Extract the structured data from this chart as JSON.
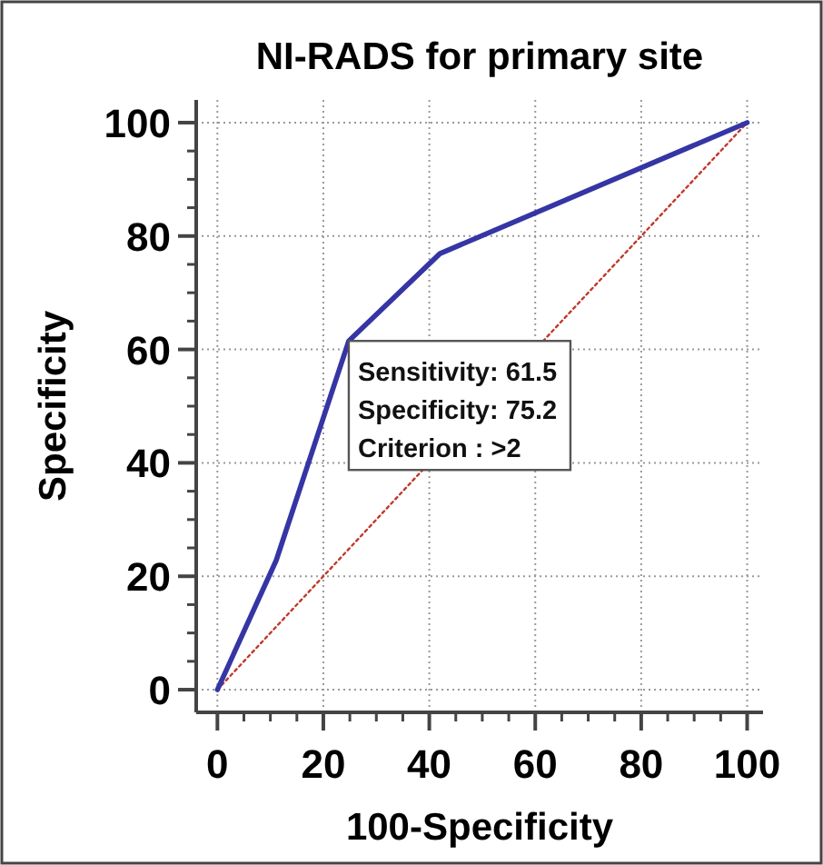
{
  "chart_data": {
    "type": "line",
    "title": "NI-RADS for primary site",
    "xlabel": "100-Specificity",
    "ylabel": "Specificity",
    "x": [
      0,
      11.1,
      24.8,
      42,
      100
    ],
    "series": [
      {
        "color": "#3535a5",
        "values": [
          0,
          22.8,
          61.5,
          76.9,
          100
        ]
      },
      {
        "type": "line",
        "x": [
          0,
          100
        ],
        "color": "#c0392b",
        "values": [
          0,
          100
        ],
        "line_style": "dotted"
      }
    ],
    "xlim": [
      -4,
      103
    ],
    "ylim": [
      -4,
      104
    ],
    "xticks": [
      0,
      20,
      40,
      60,
      80,
      100
    ],
    "yticks": [
      0,
      20,
      40,
      60,
      80,
      100
    ],
    "grid": true,
    "marker": "none",
    "line_style": "solid",
    "annotations": [
      {
        "text": "Sensitivity: 61.5\nSpecificity: 75.2\nCriterion : >2",
        "x": 24.8,
        "y": 61.5
      }
    ]
  }
}
